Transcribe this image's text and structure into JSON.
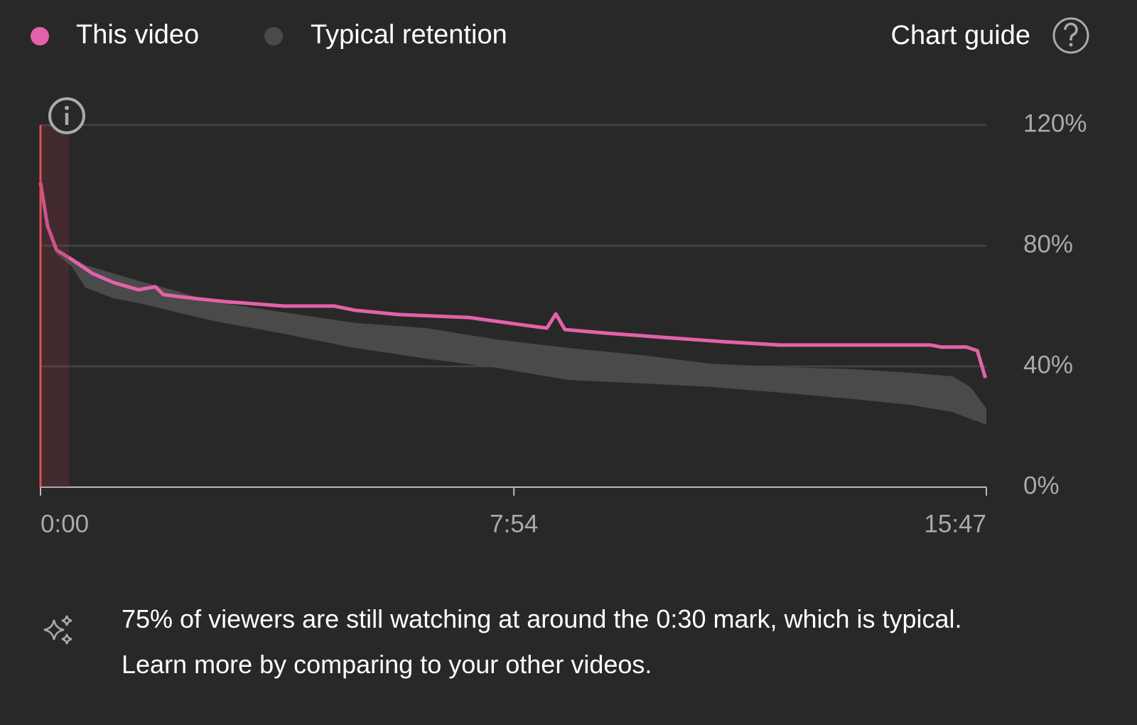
{
  "chart_data": {
    "type": "line",
    "series": [
      {
        "name": "This video",
        "color": "#e262a9",
        "x": [
          0,
          7,
          16,
          31,
          52,
          73,
          98,
          115,
          123,
          152,
          187,
          244,
          294,
          315,
          358,
          429,
          486,
          507,
          516,
          525,
          564,
          625,
          683,
          740,
          891,
          902,
          927,
          938,
          946
        ],
        "values": [
          100.9,
          86.6,
          78.6,
          75.5,
          70.8,
          67.8,
          65.4,
          66.4,
          63.8,
          62.6,
          61.4,
          60,
          60,
          58.6,
          57.2,
          56.2,
          53.6,
          52.7,
          57.4,
          52.2,
          51.1,
          49.6,
          48.2,
          47.1,
          47.1,
          46.4,
          46.4,
          45.2,
          36.2
        ]
      },
      {
        "name": "Typical retention",
        "color": "#4a4a4a",
        "x": [
          16,
          31,
          45,
          73,
          102,
          137,
          173,
          244,
          315,
          386,
          457,
          529,
          600,
          671,
          742,
          813,
          870,
          913,
          931,
          947
        ],
        "high": [
          79,
          76.2,
          73.6,
          70.8,
          68,
          64.9,
          61.4,
          57.9,
          54.4,
          52.7,
          48.9,
          46.1,
          43.8,
          40.9,
          39.8,
          39.1,
          37.9,
          36.7,
          33.2,
          26.1
        ],
        "low": [
          77.2,
          73.2,
          66.1,
          62.6,
          60.7,
          57.9,
          55.1,
          50.8,
          46.1,
          42.6,
          39.5,
          35.5,
          34.4,
          33.2,
          31.3,
          29.2,
          27.3,
          24.9,
          22.6,
          20.7
        ]
      }
    ],
    "xlim": [
      0,
      947
    ],
    "xticks": [
      {
        "value": 0,
        "label": "0:00"
      },
      {
        "value": 474,
        "label": "7:54"
      },
      {
        "value": 947,
        "label": "15:47"
      }
    ],
    "ylim": [
      0,
      120
    ],
    "yticks": [
      {
        "value": 0,
        "label": "0%"
      },
      {
        "value": 40,
        "label": "40%"
      },
      {
        "value": 80,
        "label": "80%"
      },
      {
        "value": 120,
        "label": "120%"
      }
    ],
    "grid": true
  },
  "header": {
    "chart_guide": "Chart guide"
  },
  "insight": {
    "text": "75% of viewers are still watching at around the 0:30 mark, which is typical. Learn more by comparing to your other videos."
  }
}
